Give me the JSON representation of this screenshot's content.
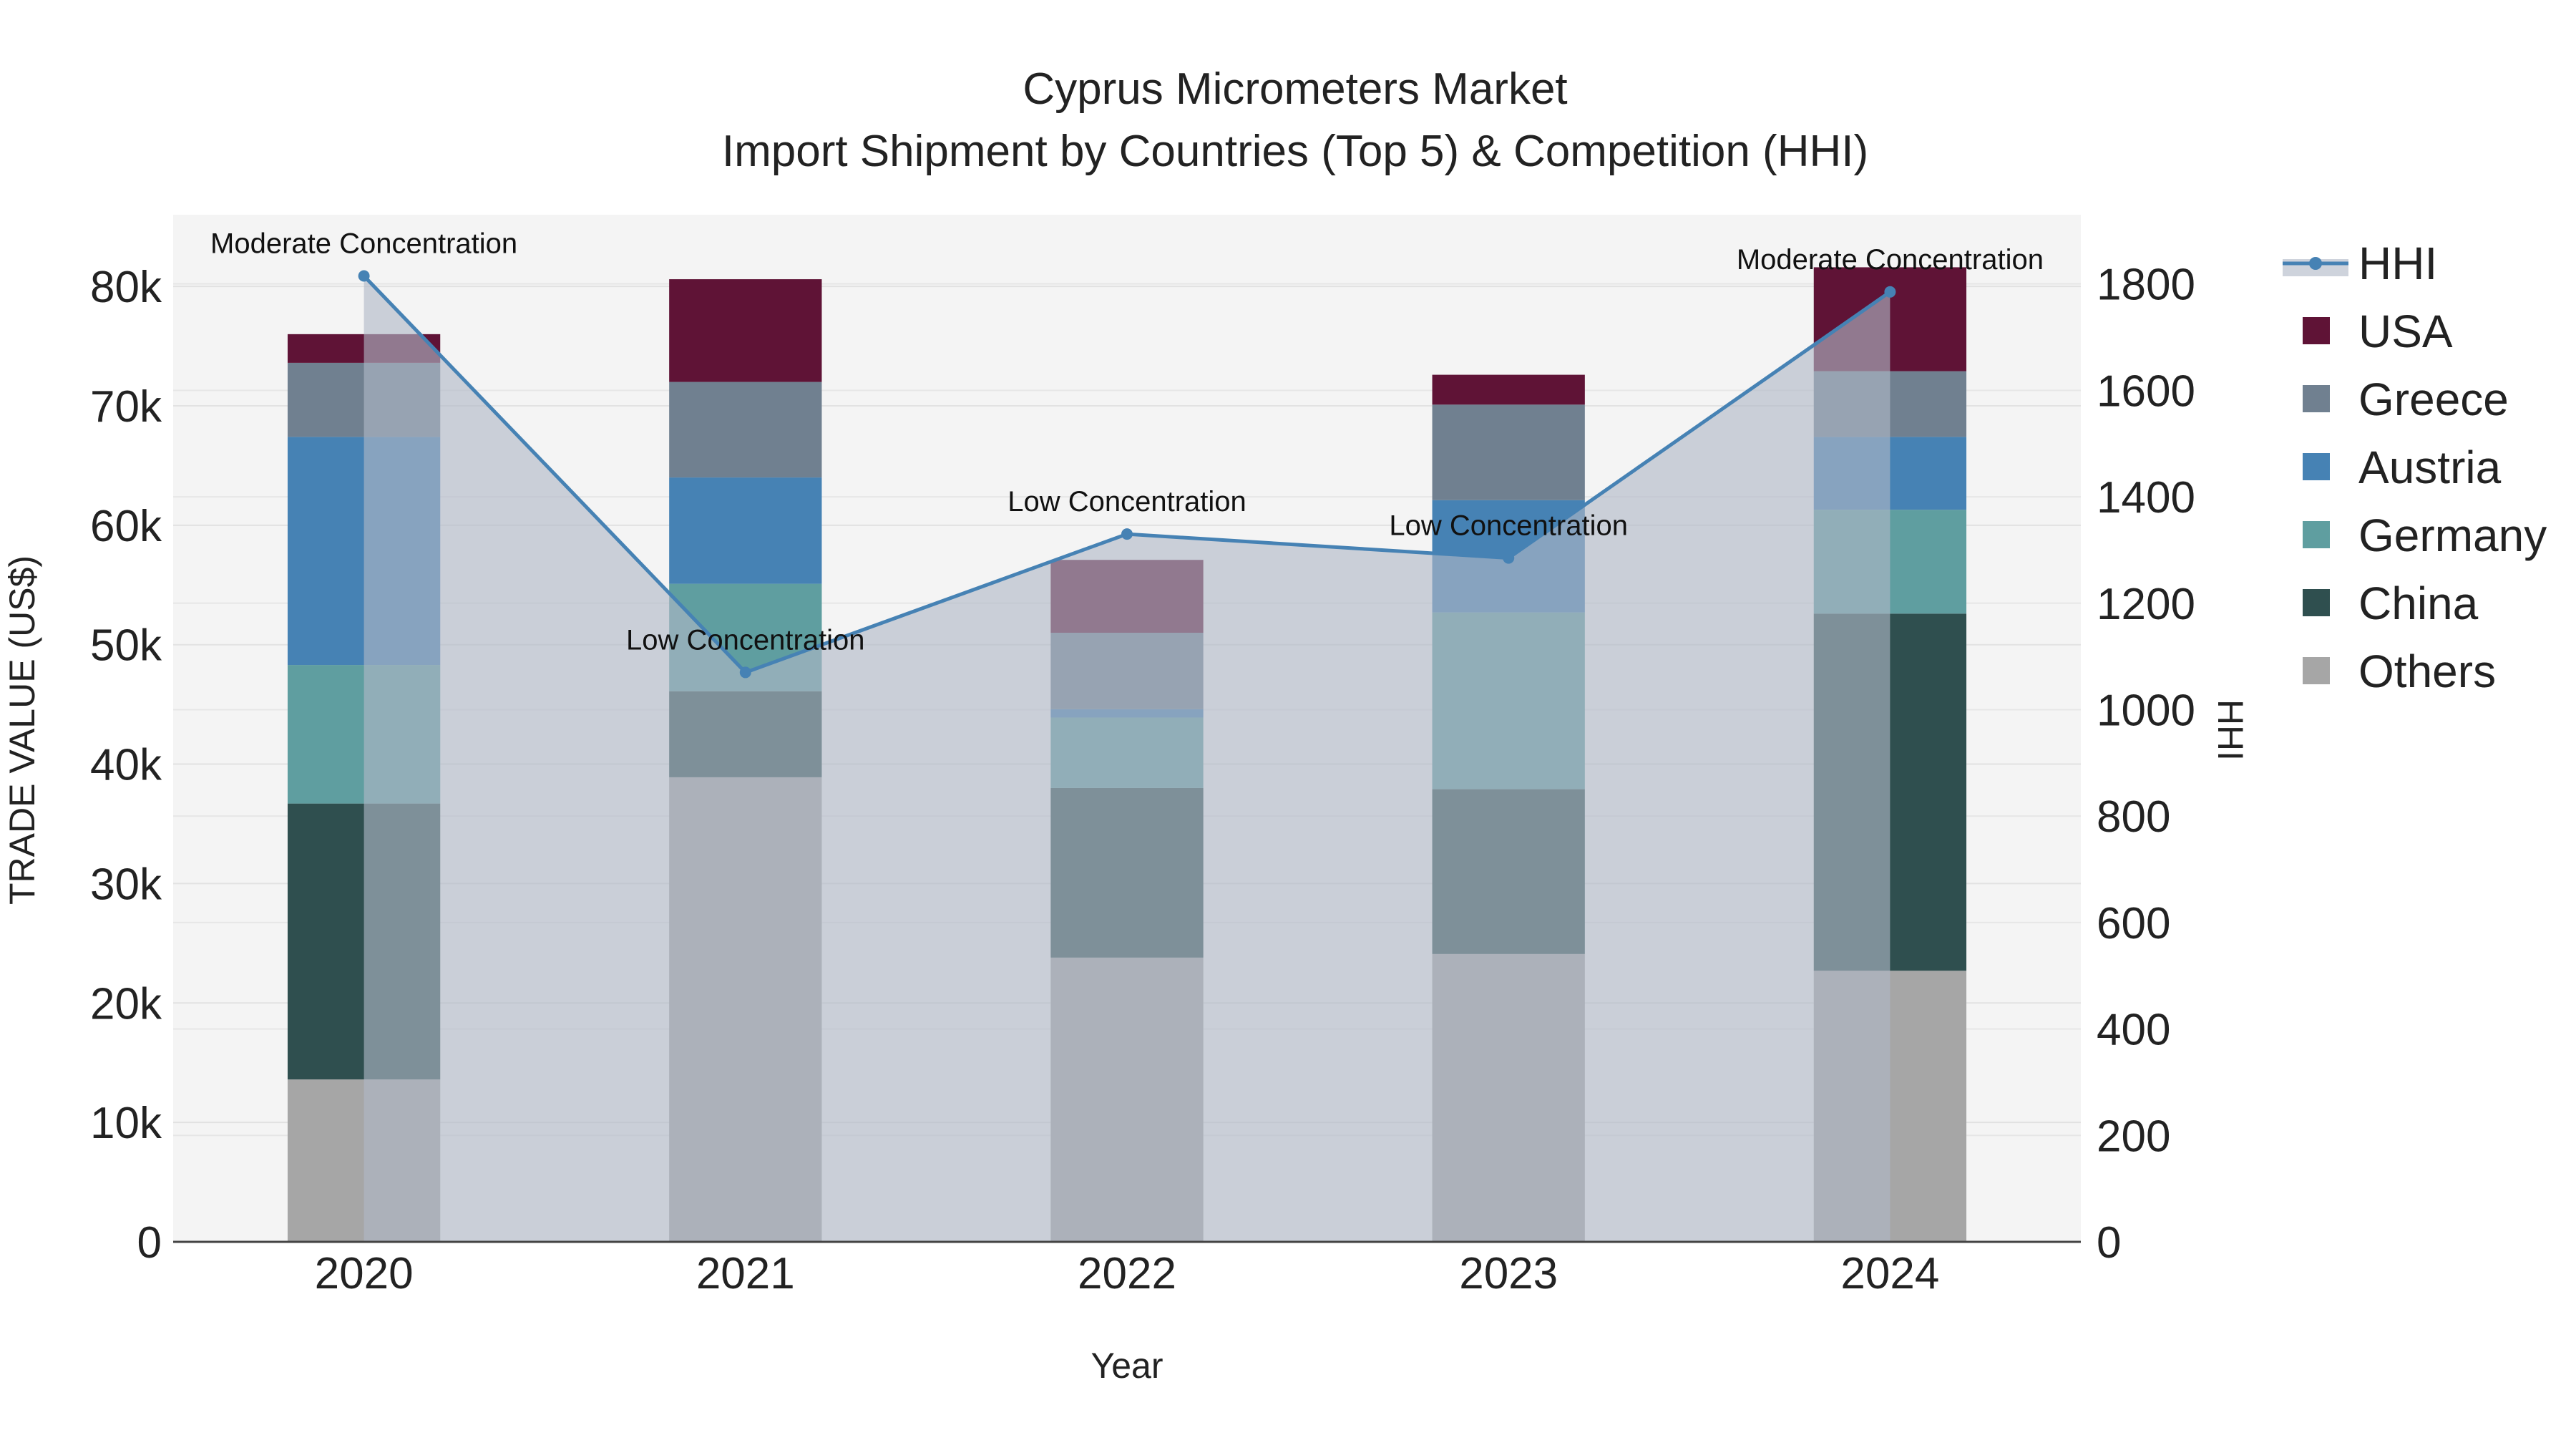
{
  "chart_data": {
    "type": "bar",
    "title_line1": "Cyprus Micrometers Market",
    "title_line2": "Import Shipment by Countries (Top 5) & Competition (HHI)",
    "xlabel": "Year",
    "ylabel": "TRADE VALUE (US$)",
    "y2label": "HHI",
    "categories": [
      "2020",
      "2021",
      "2022",
      "2023",
      "2024"
    ],
    "ylim": [
      0,
      86000
    ],
    "y_ticks": [
      0,
      10000,
      20000,
      30000,
      40000,
      50000,
      60000,
      70000,
      80000
    ],
    "y_tick_labels": [
      "0",
      "10k",
      "20k",
      "30k",
      "40k",
      "50k",
      "60k",
      "70k",
      "80k"
    ],
    "y2lim": [
      0,
      1930
    ],
    "y2_ticks": [
      0,
      200,
      400,
      600,
      800,
      1000,
      1200,
      1400,
      1600,
      1800
    ],
    "y2_tick_labels": [
      "0",
      "200",
      "400",
      "600",
      "800",
      "1000",
      "1200",
      "1400",
      "1600",
      "1800"
    ],
    "series": [
      {
        "name": "Others",
        "color": "#a6a6a6",
        "values": [
          13600,
          38900,
          23800,
          24100,
          22700
        ]
      },
      {
        "name": "China",
        "color": "#2f4f4f",
        "values": [
          23100,
          7200,
          14200,
          13800,
          29900
        ]
      },
      {
        "name": "Germany",
        "color": "#5f9ea0",
        "values": [
          11600,
          9000,
          5900,
          14800,
          8700
        ]
      },
      {
        "name": "Austria",
        "color": "#4682b4",
        "values": [
          19100,
          8900,
          700,
          9400,
          6100
        ]
      },
      {
        "name": "Greece",
        "color": "#708090",
        "values": [
          6200,
          8000,
          6400,
          8000,
          5500
        ]
      },
      {
        "name": "USA",
        "color": "#5f1336",
        "values": [
          2400,
          8600,
          6100,
          2500,
          8700
        ]
      }
    ],
    "hhi": {
      "name": "HHI",
      "color": "#4682b4",
      "values": [
        1815,
        1070,
        1330,
        1285,
        1785
      ],
      "labels": [
        "Moderate Concentration",
        "Low Concentration",
        "Low Concentration",
        "Low Concentration",
        "Moderate Concentration"
      ]
    },
    "legend_order": [
      "HHI",
      "USA",
      "Greece",
      "Austria",
      "Germany",
      "China",
      "Others"
    ],
    "legend_position": "right"
  }
}
